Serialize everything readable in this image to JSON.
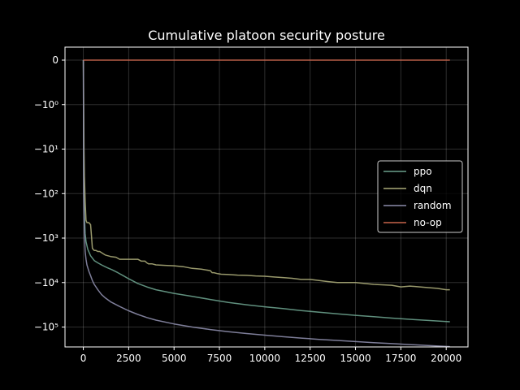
{
  "chart_data": {
    "type": "line",
    "title": "Cumulative platoon security posture",
    "xlabel": "",
    "ylabel": "",
    "y_scale": "symlog",
    "xlim": [
      -1010,
      21200
    ],
    "x_ticks": [
      0,
      2500,
      5000,
      7500,
      10000,
      12500,
      15000,
      17500,
      20000
    ],
    "x_tick_labels": [
      "0",
      "2500",
      "5000",
      "7500",
      "10000",
      "12500",
      "15000",
      "17500",
      "20000"
    ],
    "y_ticks": [
      0,
      -1,
      -10,
      -100,
      -1000,
      -10000,
      -100000
    ],
    "y_tick_labels": [
      "0",
      "−10⁰",
      "−10¹",
      "−10²",
      "−10³",
      "−10⁴",
      "−10⁵"
    ],
    "grid": true,
    "legend_position": "center-right",
    "series": [
      {
        "name": "ppo",
        "color": "#6aa08c",
        "x": [
          0,
          20,
          60,
          100,
          150,
          250,
          400,
          600,
          800,
          1000,
          1300,
          1600,
          1900,
          2200,
          2500,
          3000,
          3500,
          4000,
          4500,
          5000,
          6000,
          7000,
          8000,
          9000,
          10000,
          11000,
          12000,
          13000,
          14000,
          15000,
          16000,
          17000,
          18000,
          19000,
          20200
        ],
        "y": [
          0,
          -30,
          -300,
          -800,
          -1200,
          -1800,
          -2500,
          -3200,
          -3600,
          -4000,
          -4600,
          -5200,
          -6000,
          -7000,
          -8200,
          -10500,
          -12500,
          -14500,
          -16000,
          -17500,
          -20500,
          -24000,
          -28000,
          -31500,
          -35000,
          -38500,
          -42500,
          -46500,
          -50500,
          -54500,
          -58500,
          -63000,
          -67000,
          -71000,
          -76000
        ]
      },
      {
        "name": "dqn",
        "color": "#aaaa78",
        "x": [
          0,
          40,
          60,
          100,
          150,
          200,
          300,
          400,
          450,
          500,
          600,
          700,
          800,
          900,
          1200,
          1500,
          1800,
          2000,
          2100,
          2400,
          3000,
          3200,
          3400,
          3500,
          3600,
          3800,
          4000,
          4500,
          5000,
          5500,
          6000,
          6500,
          7000,
          7100,
          7200,
          7400,
          7600,
          8000,
          8500,
          9000,
          9500,
          10000,
          10500,
          11000,
          11500,
          12000,
          12500,
          13000,
          13500,
          14000,
          15000,
          16000,
          17000,
          17500,
          18000,
          19000,
          19500,
          20000,
          20200
        ],
        "y": [
          0,
          -10,
          -40,
          -150,
          -400,
          -450,
          -450,
          -500,
          -900,
          -1700,
          -1900,
          -1900,
          -2000,
          -2000,
          -2400,
          -2600,
          -2700,
          -3000,
          -3000,
          -3000,
          -3000,
          -3300,
          -3300,
          -3600,
          -3800,
          -3800,
          -4000,
          -4100,
          -4200,
          -4400,
          -4800,
          -5000,
          -5400,
          -6000,
          -6000,
          -6300,
          -6500,
          -6600,
          -6800,
          -6900,
          -7100,
          -7200,
          -7500,
          -7700,
          -8000,
          -8500,
          -8500,
          -9000,
          -9500,
          -10000,
          -10000,
          -11000,
          -11500,
          -12500,
          -12000,
          -13000,
          -13500,
          -14500,
          -14500
        ]
      },
      {
        "name": "random",
        "color": "#8c8caa",
        "x": [
          0,
          20,
          60,
          100,
          150,
          200,
          300,
          400,
          500,
          600,
          800,
          1000,
          1200,
          1500,
          2000,
          2500,
          3000,
          3500,
          4000,
          5000,
          6000,
          7000,
          8000,
          9000,
          10000,
          11000,
          12000,
          13000,
          14000,
          15000,
          16000,
          17000,
          18000,
          19000,
          20200
        ],
        "y": [
          0,
          -100,
          -800,
          -2000,
          -3000,
          -4000,
          -5500,
          -7000,
          -9000,
          -11000,
          -14500,
          -18500,
          -22000,
          -27000,
          -34500,
          -43000,
          -52000,
          -61000,
          -70000,
          -85000,
          -100000,
          -114000,
          -127000,
          -140000,
          -152000,
          -165000,
          -177000,
          -189000,
          -200000,
          -212000,
          -224000,
          -236000,
          -248000,
          -260000,
          -275000
        ]
      },
      {
        "name": "no-op",
        "color": "#c8644b",
        "x": [
          0,
          20200
        ],
        "y": [
          0,
          0
        ]
      }
    ]
  }
}
